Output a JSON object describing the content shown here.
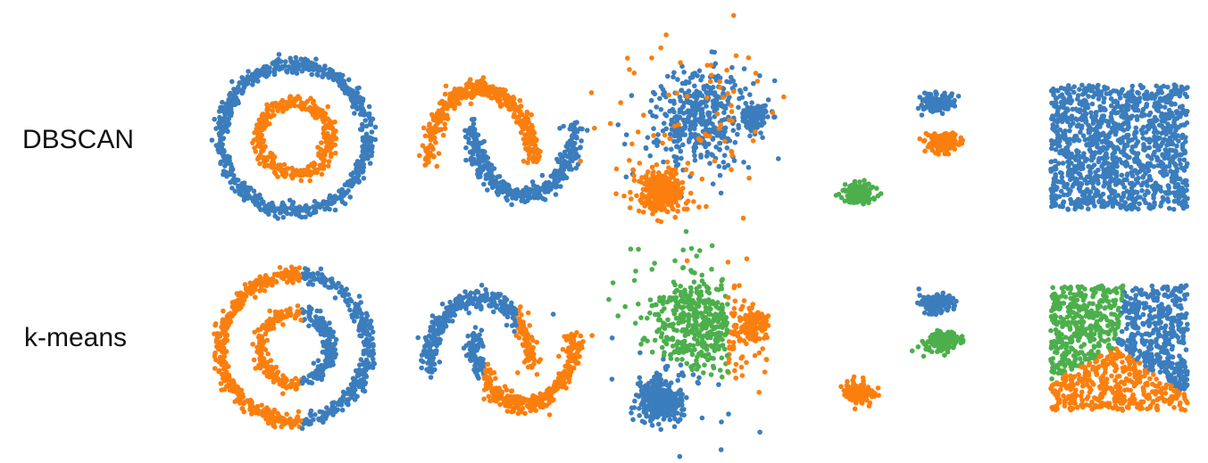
{
  "rows": [
    {
      "label": "DBSCAN"
    },
    {
      "label": "k-means"
    }
  ]
}
